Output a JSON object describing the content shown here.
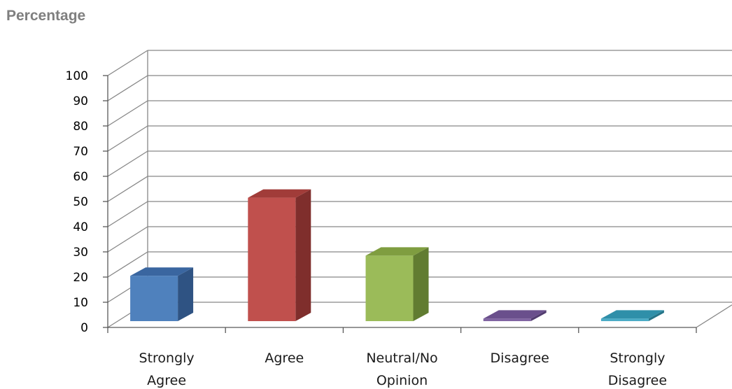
{
  "chart_data": {
    "type": "bar",
    "title": "Percentage",
    "categories": [
      [
        "Strongly",
        "Agree"
      ],
      [
        "Agree"
      ],
      [
        "Neutral/No",
        "Opinion"
      ],
      [
        "Disagree"
      ],
      [
        "Strongly",
        "Disagree"
      ]
    ],
    "values": [
      18,
      49,
      26,
      1,
      1
    ],
    "ylim": [
      0,
      100
    ],
    "yticks": [
      0,
      10,
      20,
      30,
      40,
      50,
      60,
      70,
      80,
      90,
      100
    ],
    "grid": true,
    "legend": "none",
    "style": "3d-column",
    "colors": [
      {
        "front": "#4f81bd",
        "top": "#3a66a0",
        "side": "#2f5383"
      },
      {
        "front": "#c0504d",
        "top": "#a13c39",
        "side": "#7f2e2c"
      },
      {
        "front": "#9bbb59",
        "top": "#7f9d40",
        "side": "#617c31"
      },
      {
        "front": "#8064a2",
        "top": "#6a4f8c",
        "side": "#533d70"
      },
      {
        "front": "#4bacc6",
        "top": "#2f8fa9",
        "side": "#257488"
      }
    ],
    "grid_color": "#868686",
    "axis_color": "#595959"
  }
}
